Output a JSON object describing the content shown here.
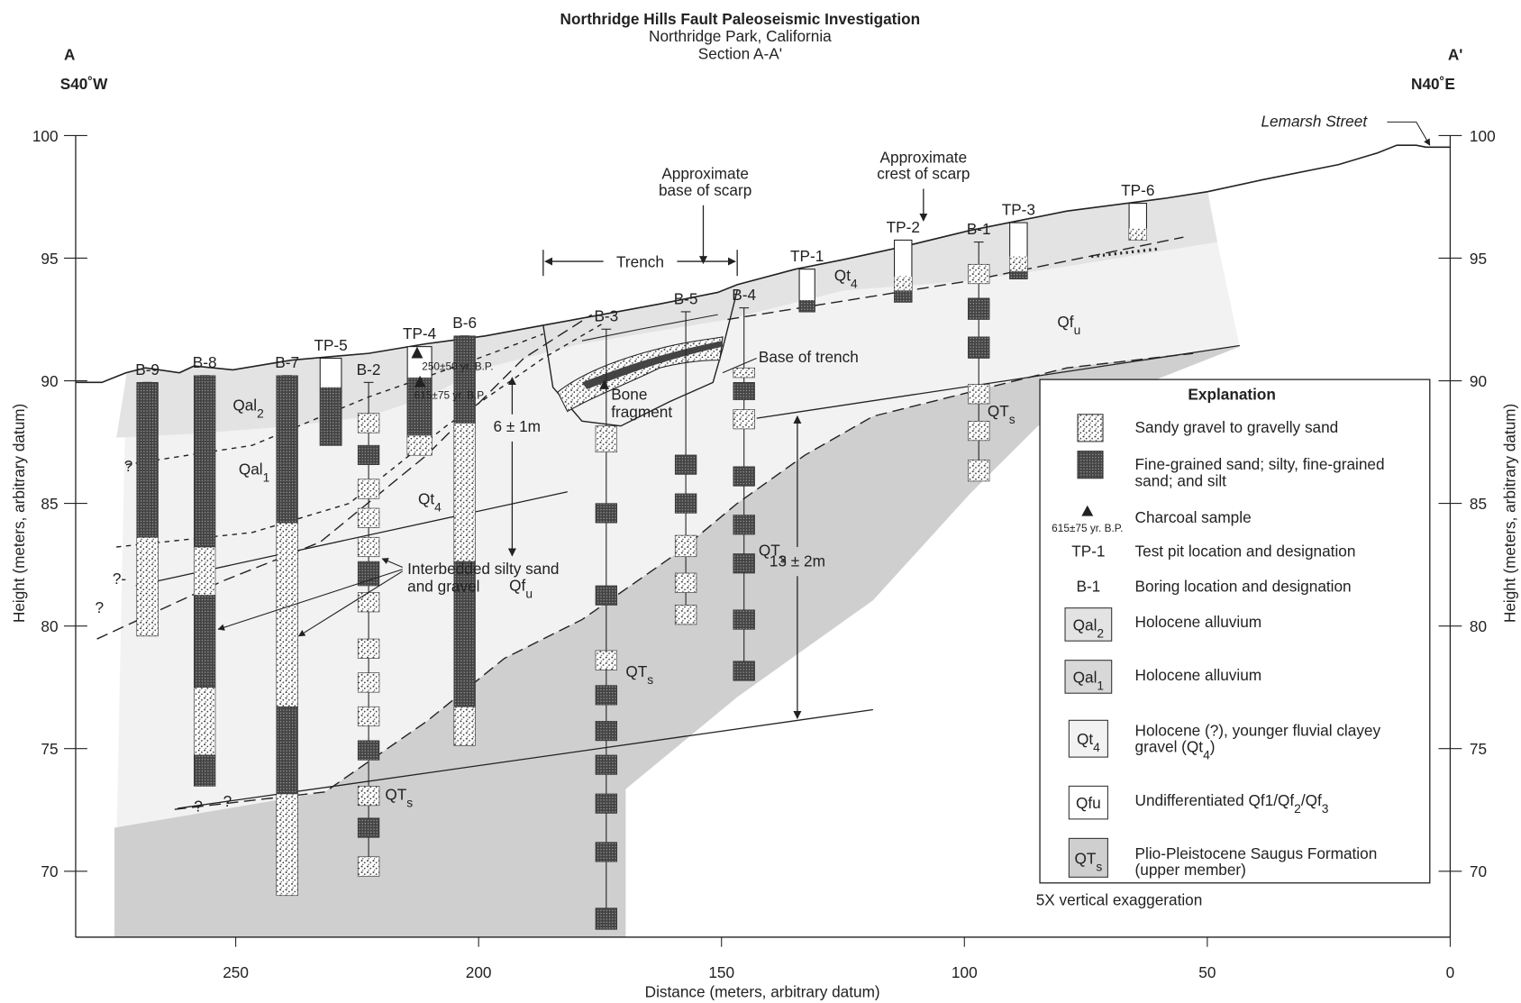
{
  "header": {
    "title": "Northridge Hills Fault Paleoseismic Investigation",
    "subtitle": "Northridge Park, California",
    "section": "Section A-A'"
  },
  "ends": {
    "left": {
      "label": "A",
      "bearing": "S40˚W"
    },
    "right": {
      "label": "A'",
      "bearing": "N40˚E"
    }
  },
  "axes": {
    "x_label": "Distance (meters, arbitrary datum)",
    "y_label": "Height (meters, arbitrary datum)",
    "x_ticks": [
      250,
      200,
      150,
      100,
      50,
      0
    ],
    "y_ticks": [
      100,
      95,
      90,
      85,
      80,
      75,
      70
    ]
  },
  "borings": [
    "B-9",
    "B-8",
    "B-7",
    "B-2",
    "B-6",
    "B-3",
    "B-5",
    "B-4",
    "B-1"
  ],
  "test_pits": [
    "TP-5",
    "TP-4",
    "TP-1",
    "TP-2",
    "TP-3",
    "TP-6"
  ],
  "unit_labels": [
    [
      "Qal",
      "2"
    ],
    [
      "Qal",
      "1"
    ],
    [
      "Qt",
      "4"
    ],
    [
      "Qt",
      "4"
    ],
    [
      "Qf",
      "u"
    ],
    [
      "Qf",
      "u"
    ],
    [
      "QT",
      "s"
    ],
    [
      "QT",
      "s"
    ],
    [
      "QT",
      "s"
    ],
    [
      "QT",
      "s"
    ]
  ],
  "annotations": {
    "street": "Lemarsh Street",
    "base_scarp": [
      "Approximate",
      "base of scarp"
    ],
    "crest_scarp": [
      "Approximate",
      "crest of scarp"
    ],
    "trench": "Trench",
    "base_trench": "Base of trench",
    "bone": [
      "Bone",
      "fragment"
    ],
    "interbedded": [
      "Interbedded silty sand",
      "and gravel"
    ],
    "offset_small": "6 ± 1m",
    "offset_large": "13 ± 2m",
    "dates": [
      "250±50 yr. B.P.",
      "615±75 yr. B.P."
    ],
    "queries": [
      "?",
      "?-",
      "?",
      "?",
      "?"
    ],
    "exaggeration": "5X vertical exaggeration"
  },
  "legend": {
    "title": "Explanation",
    "items": [
      {
        "label": [
          [
            "Sandy gravel to gravelly sand"
          ]
        ]
      },
      {
        "label": [
          [
            "Fine-grained sand; silty, fine-grained"
          ],
          [
            "sand;  and silt"
          ]
        ]
      },
      {
        "sample": "615±75 yr. B.P.",
        "label": [
          [
            "Charcoal sample"
          ]
        ]
      },
      {
        "symbol": [
          "TP-1"
        ],
        "label": [
          [
            "Test pit location and designation"
          ]
        ]
      },
      {
        "symbol": [
          "B-1"
        ],
        "label": [
          [
            "Boring location and designation"
          ]
        ]
      },
      {
        "symbol": [
          "Qal",
          "2"
        ],
        "label": [
          [
            "Holocene alluvium"
          ]
        ]
      },
      {
        "symbol": [
          "Qal",
          "1"
        ],
        "label": [
          [
            "Holocene alluvium"
          ]
        ]
      },
      {
        "symbol": [
          "Qt",
          "4"
        ],
        "label": [
          [
            "Holocene (?), younger fluvial clayey"
          ],
          [
            "gravel (Qt",
            "4",
            ")"
          ]
        ]
      },
      {
        "symbol": [
          "Qfu"
        ],
        "label": [
          [
            "Undifferentiated Qf1/Qf",
            "2",
            "/Qf",
            "3"
          ]
        ]
      },
      {
        "symbol": [
          "QT",
          "s"
        ],
        "label": [
          [
            "Plio-Pleistocene Saugus Formation"
          ],
          [
            "(upper member)"
          ]
        ]
      }
    ]
  }
}
